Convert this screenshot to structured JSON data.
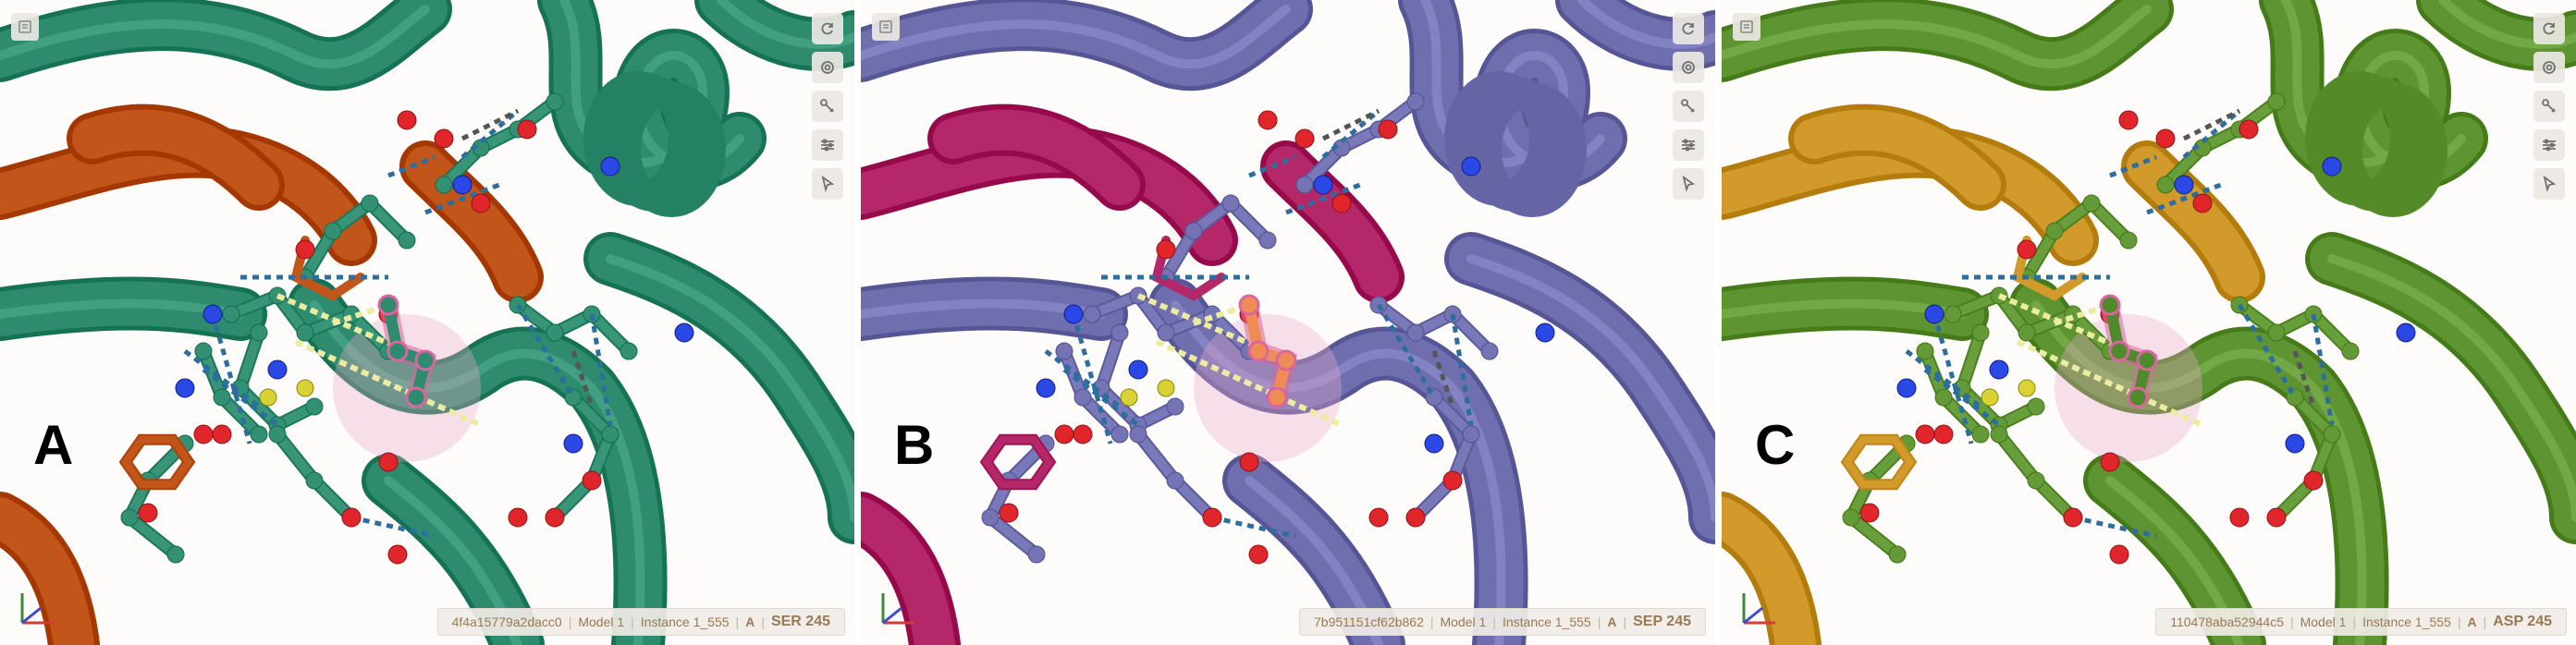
{
  "panels": [
    {
      "label": "A",
      "info": {
        "entry": "4f4a15779a2dacc0",
        "model": "Model 1",
        "instance": "Instance 1_555",
        "chain": "A",
        "residue": "SER 245"
      },
      "colors": {
        "protein": "#2e8b6e",
        "ligand": "#c2561a",
        "site": "#2e8b6e",
        "ligand_atom": "#c2561a"
      }
    },
    {
      "label": "B",
      "info": {
        "entry": "7b951151cf62b862",
        "model": "Model 1",
        "instance": "Instance 1_555",
        "chain": "A",
        "residue": "SEP 245"
      },
      "colors": {
        "protein": "#6f6fb0",
        "ligand": "#b42869",
        "site": "#5a5a9a",
        "ligand_atom": "#b42869"
      }
    },
    {
      "label": "C",
      "info": {
        "entry": "110478aba52944c5",
        "model": "Model 1",
        "instance": "Instance 1_555",
        "chain": "A",
        "residue": "ASP 245"
      },
      "colors": {
        "protein": "#5f9433",
        "ligand": "#d19a2a",
        "site": "#4f8a2c",
        "ligand_atom": "#d19a2a"
      }
    }
  ],
  "toolbar_icons": [
    "reset-view-icon",
    "screenshot-icon",
    "tools-icon",
    "settings-icon",
    "select-icon"
  ],
  "atom_colors": {
    "oxygen": "#e0262a",
    "nitrogen": "#2a48e6",
    "sulfur": "#d8d234",
    "phosphorus": "#ef8c55"
  },
  "interaction_colors": {
    "hbond": "#2c6e9e",
    "contact": "#ececa0",
    "other": "#555555"
  }
}
